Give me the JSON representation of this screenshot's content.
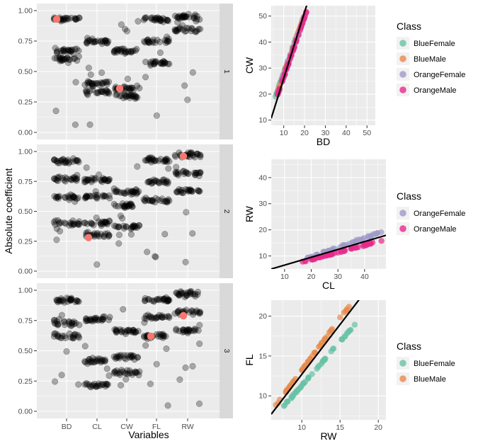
{
  "chart_data": [
    {
      "type": "scatter",
      "subtype": "jittered-strip-facets",
      "xlabel": "Variables",
      "ylabel": "Absolute coefficient",
      "categories": [
        "BD",
        "CL",
        "CW",
        "FL",
        "RW"
      ],
      "yticks": [
        "0.00",
        "0.25",
        "0.50",
        "0.75",
        "1.00"
      ],
      "ylim": [
        0,
        1
      ],
      "point_color": "#000000",
      "highlight_color": "#f8766d",
      "facets": [
        {
          "strip": "1",
          "clusters": {
            "BD": [
              0.93,
              0.67,
              0.6
            ],
            "CL": [
              0.75,
              0.4,
              0.33
            ],
            "CW": [
              0.67,
              0.36,
              0.3
            ],
            "FL": [
              0.93,
              0.75,
              0.57
            ],
            "RW": [
              0.95,
              0.84
            ]
          },
          "highlight": [
            {
              "category": "BD",
              "value": 0.93
            },
            {
              "category": "CW",
              "value": 0.36
            }
          ]
        },
        {
          "strip": "2",
          "clusters": {
            "BD": [
              0.92,
              0.77,
              0.62,
              0.4
            ],
            "CL": [
              0.76,
              0.62,
              0.4,
              0.3
            ],
            "CW": [
              0.66,
              0.55,
              0.37
            ],
            "FL": [
              0.93,
              0.75,
              0.59
            ],
            "RW": [
              0.97,
              0.82,
              0.67
            ]
          },
          "highlight": [
            {
              "category": "CL",
              "value": 0.28
            },
            {
              "category": "RW",
              "value": 0.96
            }
          ]
        },
        {
          "strip": "3",
          "clusters": {
            "BD": [
              0.92,
              0.73,
              0.62
            ],
            "CL": [
              0.76,
              0.42,
              0.22
            ],
            "CW": [
              0.66,
              0.45,
              0.32
            ],
            "FL": [
              0.92,
              0.78,
              0.62
            ],
            "RW": [
              0.97,
              0.82,
              0.67
            ]
          },
          "highlight": [
            {
              "category": "FL",
              "value": 0.62
            },
            {
              "category": "RW",
              "value": 0.79
            }
          ]
        }
      ]
    },
    {
      "type": "scatter",
      "xlabel": "BD",
      "ylabel": "CW",
      "xlim": [
        4,
        54
      ],
      "ylim": [
        8,
        54
      ],
      "xticks": [
        10,
        20,
        30,
        40,
        50
      ],
      "yticks": [
        10,
        20,
        30,
        40,
        50
      ],
      "legend_title": "Class",
      "series": [
        {
          "name": "BlueFemale",
          "color": "#66c2a5",
          "x0": 6,
          "x1": 16,
          "slope": 2.3,
          "intercept": 5.0,
          "n": 50
        },
        {
          "name": "BlueMale",
          "color": "#e78a4c",
          "x0": 7,
          "x1": 20,
          "slope": 2.3,
          "intercept": 4.5,
          "n": 50
        },
        {
          "name": "OrangeFemale",
          "color": "#9e9ac8",
          "x0": 9,
          "x1": 20,
          "slope": 2.3,
          "intercept": 4.0,
          "n": 50
        },
        {
          "name": "OrangeMale",
          "color": "#e7298a",
          "x0": 7,
          "x1": 21,
          "slope": 2.3,
          "intercept": 3.5,
          "n": 50
        }
      ],
      "fit_line": {
        "slope": 2.55,
        "intercept": 0.5
      }
    },
    {
      "type": "scatter",
      "xlabel": "CL",
      "ylabel": "RW",
      "xlim": [
        5,
        48
      ],
      "ylim": [
        5,
        47
      ],
      "xticks": [
        10,
        20,
        30,
        40
      ],
      "yticks": [
        10,
        20,
        30,
        40
      ],
      "legend_title": "Class",
      "series": [
        {
          "name": "OrangeFemale",
          "color": "#9e9ac8",
          "x0": 18,
          "x1": 47,
          "slope": 0.36,
          "intercept": 2.5,
          "n": 50
        },
        {
          "name": "OrangeMale",
          "color": "#e7298a",
          "x0": 16,
          "x1": 47,
          "slope": 0.28,
          "intercept": 3.0,
          "n": 50
        }
      ],
      "fit_line": {
        "slope": 0.3,
        "intercept": 3.5
      }
    },
    {
      "type": "scatter",
      "xlabel": "RW",
      "ylabel": "FL",
      "xlim": [
        6,
        21
      ],
      "ylim": [
        7,
        22
      ],
      "xticks": [
        10,
        15,
        20
      ],
      "yticks": [
        10,
        15,
        20
      ],
      "legend_title": "Class",
      "series": [
        {
          "name": "BlueFemale",
          "color": "#66c2a5",
          "x0": 7.5,
          "x1": 17,
          "slope": 1.1,
          "intercept": 0.3,
          "n": 50
        },
        {
          "name": "BlueMale",
          "color": "#e78a4c",
          "x0": 6.5,
          "x1": 16.5,
          "slope": 1.3,
          "intercept": 0.2,
          "n": 50
        }
      ],
      "fit_line": {
        "slope": 1.25,
        "intercept": 0.2
      }
    }
  ]
}
